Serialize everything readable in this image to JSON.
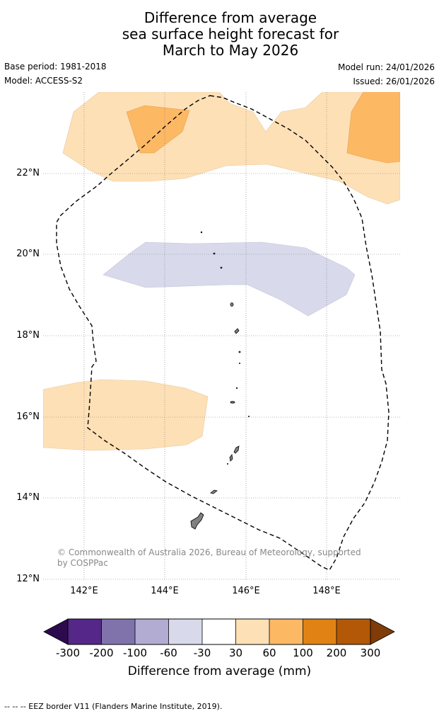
{
  "title": {
    "line1": "Difference from average",
    "line2": "sea surface height forecast for",
    "line3": "March to May 2026"
  },
  "meta": {
    "base_period": "Base period: 1981-2018",
    "model": "Model: ACCESS-S2",
    "model_run": "Model run: 24/01/2026",
    "issued": "Issued: 26/01/2026"
  },
  "map": {
    "lat_labels": [
      "22°N",
      "20°N",
      "18°N",
      "16°N",
      "14°N",
      "12°N"
    ],
    "lon_labels": [
      "142°E",
      "144°E",
      "146°E",
      "148°E"
    ],
    "copyright_line1": "© Commonwealth of Australia 2026, Bureau of Meteorology, supported",
    "copyright_line2": "by COSPPac"
  },
  "colorbar": {
    "tick_labels": [
      "-300",
      "-200",
      "-100",
      "-60",
      "-30",
      "30",
      "60",
      "100",
      "200",
      "300"
    ],
    "title": "Difference from average (mm)",
    "colors": {
      "below_min": "#2d0a4e",
      "m300_m200": "#542788",
      "m200_m100": "#8073ac",
      "m100_m60": "#b2abd2",
      "m60_m30": "#d8daeb",
      "m30_30": "#ffffff",
      "p30_60": "#fee0b6",
      "p60_100": "#fdb863",
      "p100_200": "#e08214",
      "p200_300": "#b35806",
      "above_max": "#7f3b08"
    }
  },
  "footer": "--  --  -- EEZ border V11 (Flanders Marine Institute, 2019)."
}
